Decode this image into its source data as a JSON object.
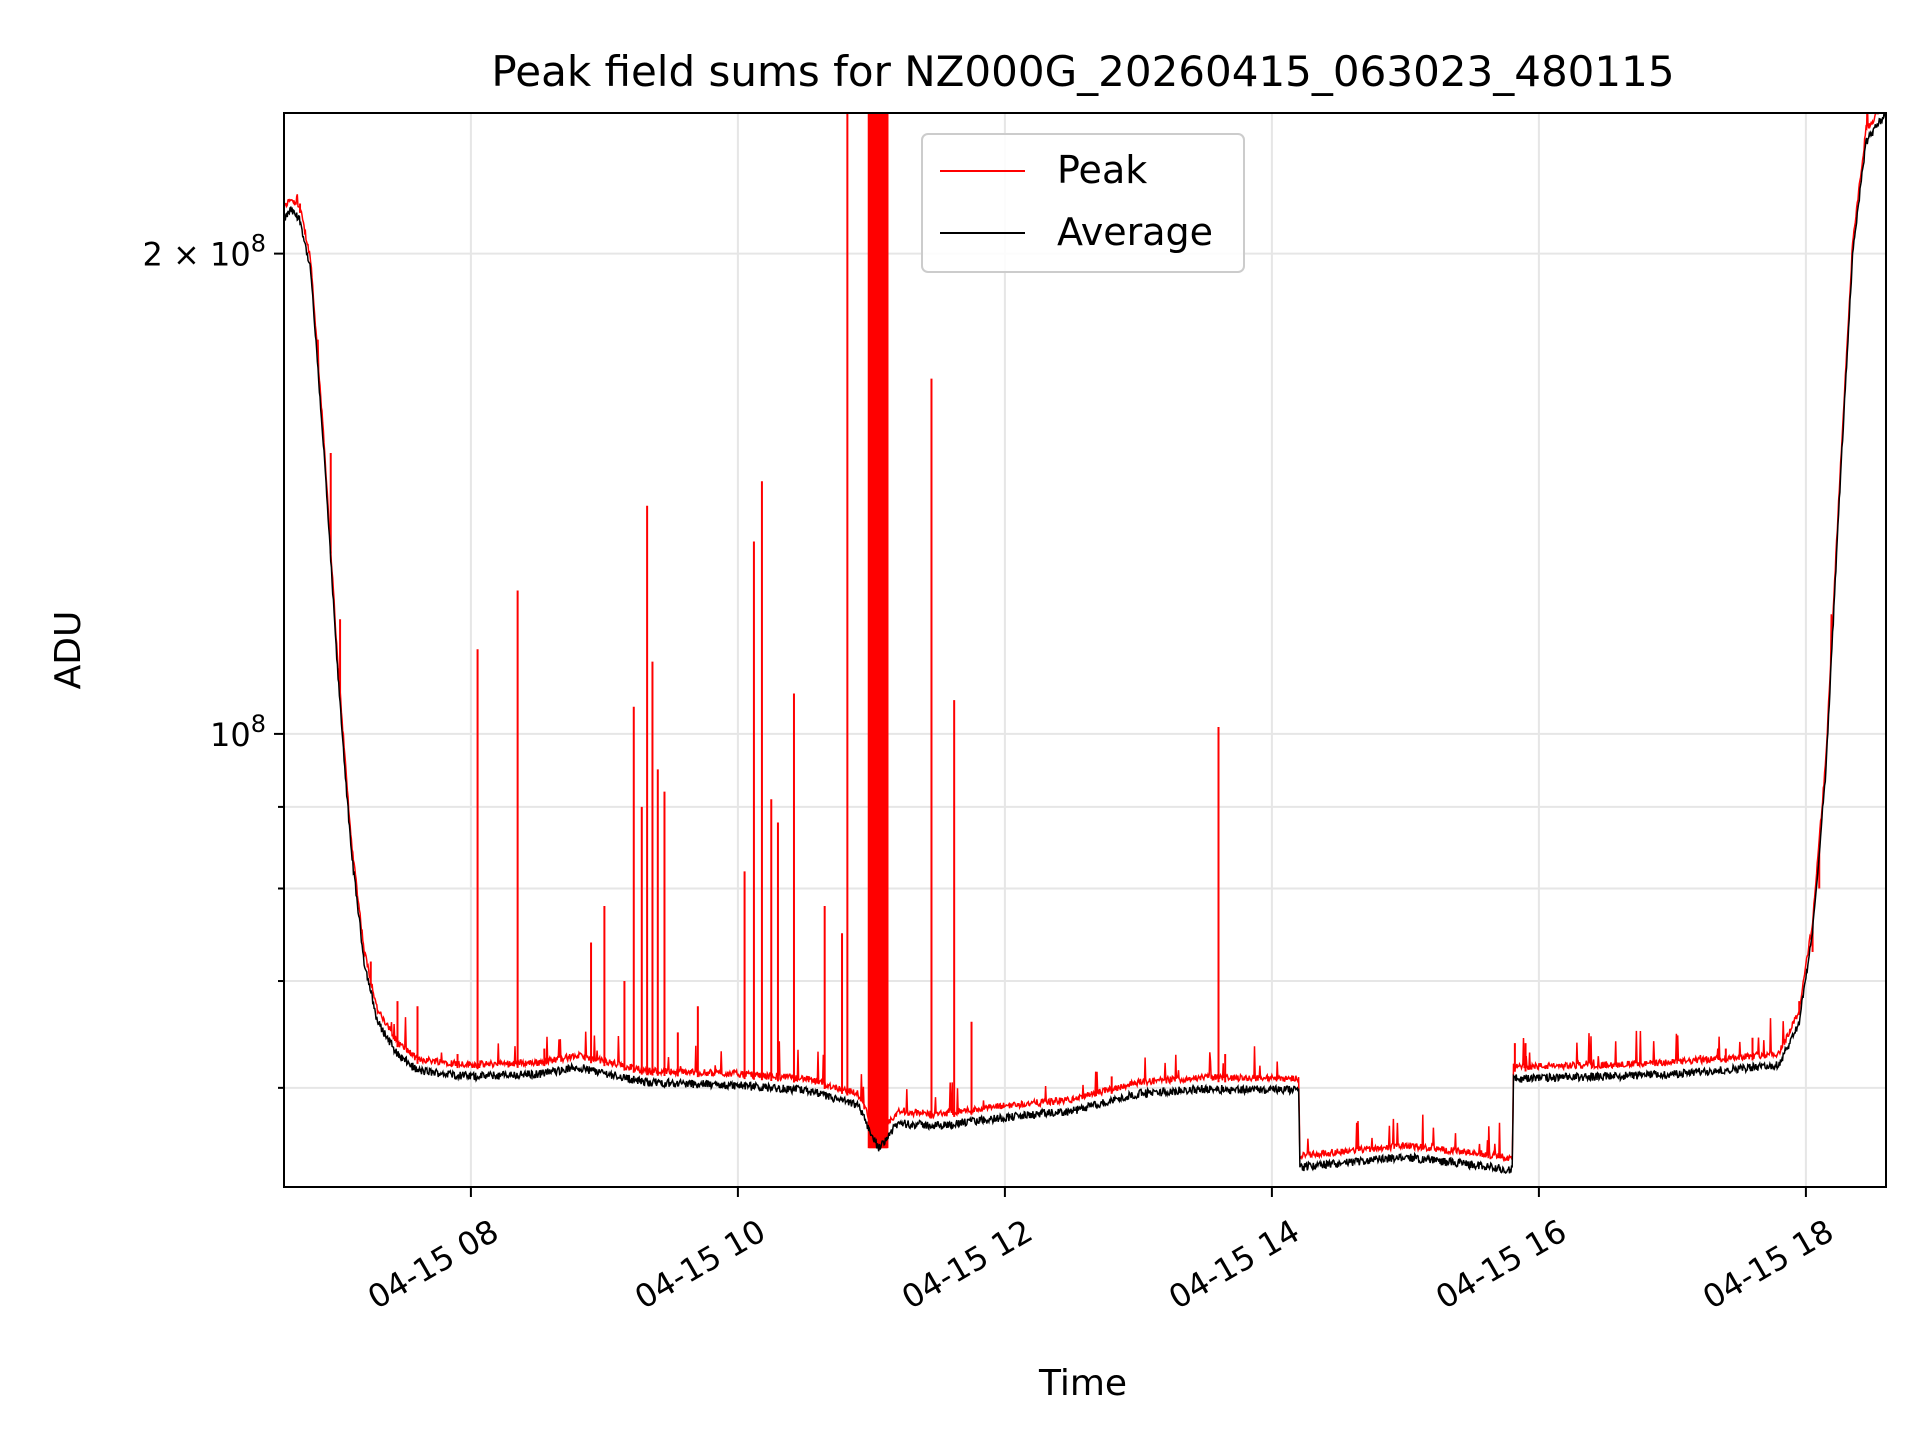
{
  "chart_data": {
    "type": "line",
    "title": "Peak field sums for NZ000G_20260415_063023_480115",
    "xlabel": "Time",
    "ylabel": "ADU",
    "yscale": "log",
    "xlim_hours": [
      6.6,
      18.6
    ],
    "ylim": [
      52000000,
      245000000
    ],
    "x_tick_labels": [
      "04-15 08",
      "04-15 10",
      "04-15 12",
      "04-15 14",
      "04-15 16",
      "04-15 18"
    ],
    "x_tick_hours": [
      8,
      10,
      12,
      14,
      16,
      18
    ],
    "y_tick_values": [
      100000000,
      200000000
    ],
    "y_tick_labels": [
      {
        "base": "10",
        "exp": "8",
        "coef": ""
      },
      {
        "base": "10",
        "exp": "8",
        "coef": "2 × "
      }
    ],
    "y_minor_ticks": [
      60000000,
      70000000,
      80000000,
      90000000
    ],
    "grid": true,
    "legend": {
      "position": "top-center",
      "entries": [
        {
          "name": "Peak",
          "color": "#ff0000"
        },
        {
          "name": "Average",
          "color": "#000000"
        }
      ]
    },
    "average_baseline": [
      [
        6.6,
        210000000
      ],
      [
        6.65,
        213000000
      ],
      [
        6.72,
        210000000
      ],
      [
        6.8,
        195000000
      ],
      [
        6.9,
        150000000
      ],
      [
        7.0,
        110000000
      ],
      [
        7.1,
        85000000
      ],
      [
        7.2,
        72000000
      ],
      [
        7.3,
        66000000
      ],
      [
        7.45,
        63000000
      ],
      [
        7.6,
        61500000
      ],
      [
        8.0,
        61000000
      ],
      [
        8.5,
        61200000
      ],
      [
        8.8,
        61800000
      ],
      [
        9.0,
        61300000
      ],
      [
        9.3,
        60500000
      ],
      [
        10.0,
        60200000
      ],
      [
        10.5,
        59800000
      ],
      [
        10.9,
        58500000
      ],
      [
        11.05,
        55000000
      ],
      [
        11.2,
        57000000
      ],
      [
        11.5,
        56800000
      ],
      [
        12.0,
        57500000
      ],
      [
        12.5,
        58000000
      ],
      [
        13.0,
        59500000
      ],
      [
        13.5,
        59900000
      ],
      [
        14.2,
        59800000
      ],
      [
        14.21,
        53500000
      ],
      [
        14.5,
        53800000
      ],
      [
        15.0,
        54300000
      ],
      [
        15.5,
        53700000
      ],
      [
        15.8,
        53300000
      ],
      [
        15.81,
        60800000
      ],
      [
        16.5,
        61000000
      ],
      [
        17.0,
        61200000
      ],
      [
        17.5,
        61700000
      ],
      [
        17.8,
        62000000
      ],
      [
        17.95,
        66000000
      ],
      [
        18.05,
        75000000
      ],
      [
        18.15,
        95000000
      ],
      [
        18.25,
        140000000
      ],
      [
        18.35,
        200000000
      ],
      [
        18.45,
        235000000
      ],
      [
        18.6,
        245000000
      ]
    ],
    "peak_spikes": [
      [
        6.72,
        215000000
      ],
      [
        6.95,
        150000000
      ],
      [
        7.02,
        118000000
      ],
      [
        7.25,
        72000000
      ],
      [
        7.45,
        68000000
      ],
      [
        7.6,
        67500000
      ],
      [
        7.9,
        63000000
      ],
      [
        8.05,
        113000000
      ],
      [
        8.35,
        123000000
      ],
      [
        8.55,
        63500000
      ],
      [
        8.9,
        74000000
      ],
      [
        9.0,
        78000000
      ],
      [
        9.15,
        70000000
      ],
      [
        9.22,
        104000000
      ],
      [
        9.28,
        90000000
      ],
      [
        9.32,
        139000000
      ],
      [
        9.36,
        111000000
      ],
      [
        9.4,
        95000000
      ],
      [
        9.45,
        92000000
      ],
      [
        9.55,
        65000000
      ],
      [
        9.7,
        67500000
      ],
      [
        10.05,
        82000000
      ],
      [
        10.12,
        132000000
      ],
      [
        10.18,
        144000000
      ],
      [
        10.25,
        91000000
      ],
      [
        10.3,
        88000000
      ],
      [
        10.42,
        106000000
      ],
      [
        10.65,
        78000000
      ],
      [
        10.78,
        75000000
      ],
      [
        10.82,
        245000000
      ],
      [
        11.0,
        245000000
      ],
      [
        11.05,
        245000000
      ],
      [
        11.08,
        245000000
      ],
      [
        11.12,
        245000000
      ],
      [
        11.45,
        167000000
      ],
      [
        11.62,
        105000000
      ],
      [
        11.75,
        66000000
      ],
      [
        12.8,
        61000000
      ],
      [
        13.6,
        101000000
      ],
      [
        13.65,
        63000000
      ],
      [
        15.82,
        64000000
      ],
      [
        15.9,
        64000000
      ],
      [
        17.4,
        63500000
      ],
      [
        17.6,
        64500000
      ],
      [
        17.95,
        68000000
      ],
      [
        18.05,
        73000000
      ],
      [
        18.1,
        80000000
      ]
    ]
  }
}
